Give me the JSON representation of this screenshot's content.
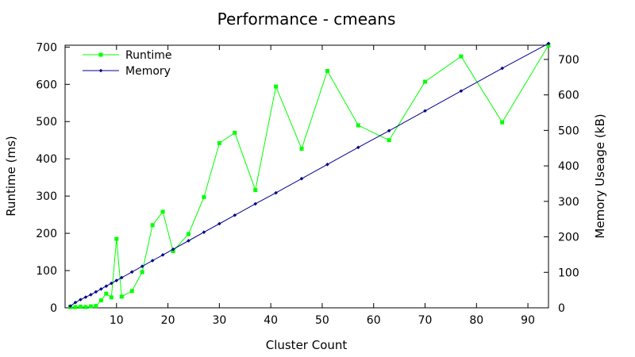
{
  "chart_data": {
    "type": "line",
    "title": "Performance - cmeans",
    "xlabel": "Cluster Count",
    "ylabel": "Runtime (ms)",
    "y2label": "Memory Useage (kB)",
    "xlim": [
      0,
      94
    ],
    "ylim": [
      0,
      705
    ],
    "y2lim": [
      0,
      740
    ],
    "xticks": [
      10,
      20,
      30,
      40,
      50,
      60,
      70,
      80,
      90
    ],
    "yticks": [
      0,
      100,
      200,
      300,
      400,
      500,
      600,
      700
    ],
    "y2ticks": [
      0,
      100,
      200,
      300,
      400,
      500,
      600,
      700
    ],
    "legend_position": "top-left",
    "grid": false,
    "series": [
      {
        "name": "Runtime",
        "axis": "left",
        "color": "#00ff00",
        "marker": "square",
        "x": [
          1,
          2,
          3,
          4,
          5,
          6,
          7,
          8,
          9,
          10,
          11,
          13,
          15,
          17,
          19,
          21,
          24,
          27,
          30,
          33,
          37,
          41,
          46,
          51,
          57,
          63,
          70,
          77,
          85,
          94
        ],
        "y": [
          2,
          2,
          3,
          2,
          4,
          5,
          20,
          38,
          28,
          185,
          30,
          45,
          96,
          222,
          258,
          152,
          198,
          297,
          442,
          470,
          316,
          594,
          427,
          636,
          490,
          450,
          607,
          675,
          498,
          705
        ]
      },
      {
        "name": "Memory",
        "axis": "right",
        "color": "#00008b",
        "marker": "diamond",
        "x": [
          1,
          2,
          3,
          4,
          5,
          6,
          7,
          8,
          9,
          10,
          11,
          13,
          15,
          17,
          19,
          21,
          24,
          27,
          30,
          33,
          37,
          41,
          46,
          51,
          57,
          63,
          70,
          77,
          85,
          94
        ],
        "y": [
          5,
          15,
          23,
          30,
          37,
          45,
          53,
          61,
          69,
          77,
          85,
          101,
          117,
          133,
          149,
          165,
          189,
          213,
          237,
          261,
          293,
          324,
          364,
          404,
          452,
          499,
          555,
          611,
          675,
          745
        ]
      }
    ]
  }
}
